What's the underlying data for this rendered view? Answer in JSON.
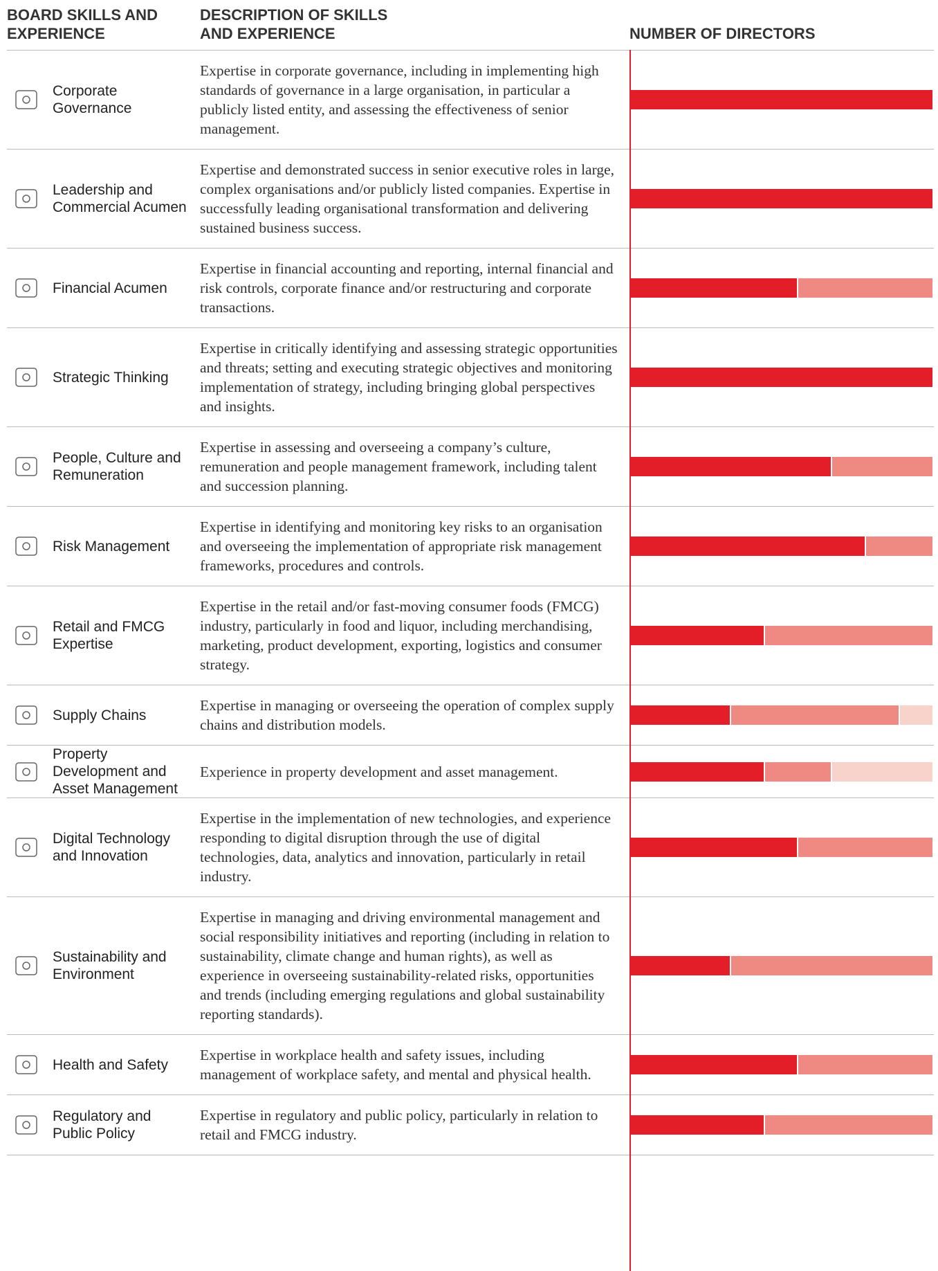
{
  "header": {
    "skills": "BOARD SKILLS AND EXPERIENCE",
    "description": "DESCRIPTION OF SKILLS AND EXPERIENCE",
    "directors": "NUMBER OF DIRECTORS"
  },
  "xlim": [
    0,
    9
  ],
  "colors": [
    "#e31e28",
    "#ef8a82",
    "#f8d3cc"
  ],
  "rows": [
    {
      "skill": "Corporate Governance",
      "description": "Expertise in corporate governance, including in implementing high standards of governance in a large organisation, in particular a publicly listed entity, and assessing the effectiveness of senior management.",
      "values": [
        9
      ]
    },
    {
      "skill": "Leadership and Commercial Acumen",
      "description": "Expertise and demonstrated success in senior executive roles in large, complex organisations and/or publicly listed companies. Expertise in successfully leading organisational transformation and delivering sustained business success.",
      "values": [
        9
      ]
    },
    {
      "skill": "Financial Acumen",
      "description": "Expertise in financial accounting and reporting, internal financial and risk controls, corporate finance and/or restructuring and corporate transactions.",
      "values": [
        5,
        4
      ]
    },
    {
      "skill": "Strategic Thinking",
      "description": "Expertise in critically identifying and assessing strategic opportunities and threats; setting and executing strategic objectives and monitoring implementation of strategy, including bringing global perspectives and insights.",
      "values": [
        9
      ]
    },
    {
      "skill": "People, Culture and Remuneration",
      "description": "Expertise in assessing and overseeing a company’s culture, remuneration and people management framework, including talent and succession planning.",
      "values": [
        6,
        3
      ]
    },
    {
      "skill": "Risk Management",
      "description": "Expertise in identifying and monitoring key risks to an organisation and overseeing the implementation of appropriate risk management frameworks, procedures and controls.",
      "values": [
        7,
        2
      ]
    },
    {
      "skill": "Retail and FMCG Expertise",
      "description": "Expertise in the retail and/or fast-moving consumer foods (FMCG) industry, particularly in food and liquor, including merchandising, marketing, product development, exporting, logistics and consumer strategy.",
      "values": [
        4,
        5
      ]
    },
    {
      "skill": "Supply Chains",
      "description": "Expertise in managing or overseeing the operation of complex supply chains and distribution models.",
      "values": [
        3,
        5,
        1
      ]
    },
    {
      "skill": "Property Development and Asset Management",
      "description": "Experience in property development and asset management.",
      "values": [
        4,
        2,
        3
      ]
    },
    {
      "skill": "Digital Technology and Innovation",
      "description": "Expertise in the implementation of new technologies, and experience responding to digital disruption through the use of digital technologies, data, analytics and innovation, particularly in retail industry.",
      "values": [
        5,
        4
      ]
    },
    {
      "skill": "Sustainability and Environment",
      "description": "Expertise in managing and driving environmental management and social responsibility initiatives and reporting (including in relation to sustainability, climate change and human rights), as well as experience in overseeing sustainability-related risks, opportunities and trends (including emerging regulations and global sustainability reporting standards).",
      "values": [
        3,
        6
      ]
    },
    {
      "skill": "Health and Safety",
      "description": "Expertise in workplace health and safety issues, including management of workplace safety, and mental and physical health.",
      "values": [
        5,
        4
      ]
    },
    {
      "skill": "Regulatory and Public Policy",
      "description": "Expertise in regulatory and public policy, particularly in relation to retail and FMCG industry.",
      "values": [
        4,
        5
      ]
    }
  ]
}
